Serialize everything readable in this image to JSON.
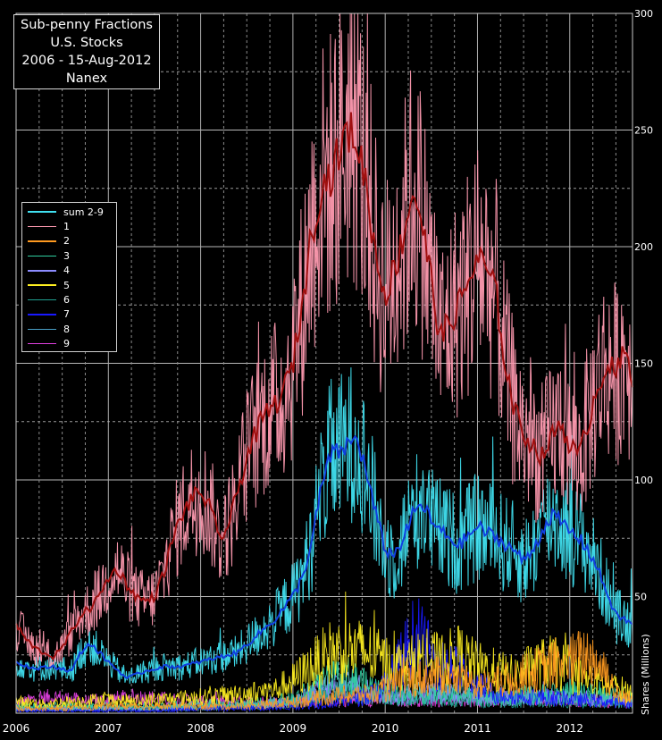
{
  "chart_data": {
    "type": "line",
    "title_lines": [
      "Sub-penny Fractions",
      "U.S. Stocks",
      "2006 - 15-Aug-2012",
      "Nanex"
    ],
    "ylabel": "Shares (Millions)",
    "xlabel": "",
    "xlim": [
      2006.0,
      2012.68
    ],
    "ylim": [
      0,
      300
    ],
    "x_ticks": [
      "2006",
      "2007",
      "2008",
      "2009",
      "2010",
      "2011",
      "2012"
    ],
    "y_ticks": [
      50,
      100,
      150,
      200,
      250,
      300
    ],
    "grid": true,
    "legend_position": "upper-left",
    "series": [
      {
        "name": "sum 2-9",
        "color": "#40e0f0",
        "x": [
          2006.0,
          2006.2,
          2006.4,
          2006.6,
          2006.7,
          2006.8,
          2007.0,
          2007.2,
          2007.4,
          2007.6,
          2007.8,
          2008.0,
          2008.2,
          2008.4,
          2008.6,
          2008.8,
          2009.0,
          2009.1,
          2009.2,
          2009.3,
          2009.4,
          2009.5,
          2009.6,
          2009.7,
          2009.8,
          2009.9,
          2010.0,
          2010.1,
          2010.2,
          2010.3,
          2010.4,
          2010.5,
          2010.6,
          2010.8,
          2011.0,
          2011.2,
          2011.4,
          2011.5,
          2011.6,
          2011.7,
          2011.8,
          2011.9,
          2012.0,
          2012.1,
          2012.2,
          2012.3,
          2012.4,
          2012.5,
          2012.6,
          2012.68
        ],
        "y": [
          22,
          19,
          20,
          18,
          26,
          30,
          22,
          15,
          18,
          20,
          20,
          22,
          24,
          26,
          33,
          40,
          50,
          58,
          72,
          95,
          110,
          112,
          115,
          118,
          102,
          85,
          70,
          68,
          75,
          85,
          90,
          82,
          78,
          72,
          80,
          75,
          70,
          65,
          70,
          78,
          85,
          82,
          78,
          75,
          70,
          62,
          52,
          42,
          40,
          38
        ]
      },
      {
        "name": "1",
        "color": "#ff9ab0",
        "x": [
          2006.0,
          2006.1,
          2006.2,
          2006.3,
          2006.4,
          2006.5,
          2006.6,
          2006.7,
          2006.8,
          2006.9,
          2007.0,
          2007.1,
          2007.2,
          2007.3,
          2007.4,
          2007.5,
          2007.6,
          2007.7,
          2007.8,
          2007.9,
          2008.0,
          2008.1,
          2008.2,
          2008.3,
          2008.4,
          2008.5,
          2008.6,
          2008.7,
          2008.8,
          2008.9,
          2009.0,
          2009.1,
          2009.2,
          2009.3,
          2009.4,
          2009.5,
          2009.6,
          2009.7,
          2009.8,
          2009.9,
          2010.0,
          2010.1,
          2010.2,
          2010.3,
          2010.4,
          2010.5,
          2010.6,
          2010.7,
          2010.8,
          2010.9,
          2011.0,
          2011.1,
          2011.2,
          2011.3,
          2011.4,
          2011.5,
          2011.6,
          2011.7,
          2011.8,
          2011.9,
          2012.0,
          2012.1,
          2012.2,
          2012.3,
          2012.4,
          2012.5,
          2012.6,
          2012.68
        ],
        "y": [
          38,
          32,
          28,
          26,
          24,
          28,
          35,
          42,
          45,
          50,
          58,
          62,
          55,
          50,
          48,
          50,
          60,
          75,
          85,
          92,
          95,
          88,
          75,
          80,
          95,
          110,
          120,
          128,
          132,
          138,
          150,
          175,
          205,
          225,
          230,
          240,
          250,
          245,
          225,
          195,
          180,
          190,
          205,
          225,
          210,
          185,
          160,
          168,
          175,
          185,
          195,
          190,
          180,
          150,
          130,
          120,
          115,
          110,
          118,
          125,
          115,
          110,
          125,
          140,
          150,
          145,
          155,
          145
        ]
      },
      {
        "name": "2",
        "color": "#ff9a20",
        "x": [
          2006.0,
          2006.5,
          2007.0,
          2007.5,
          2008.0,
          2008.5,
          2008.8,
          2009.0,
          2009.2,
          2009.4,
          2009.6,
          2009.8,
          2010.0,
          2010.2,
          2010.4,
          2010.6,
          2010.8,
          2011.0,
          2011.2,
          2011.4,
          2011.6,
          2011.8,
          2012.0,
          2012.2,
          2012.4,
          2012.5,
          2012.68
        ],
        "y": [
          2,
          2,
          3,
          3,
          3,
          3,
          4,
          5,
          6,
          7,
          8,
          8,
          10,
          14,
          15,
          16,
          14,
          12,
          13,
          15,
          18,
          20,
          22,
          25,
          18,
          8,
          6
        ]
      },
      {
        "name": "3",
        "color": "#30d0a0",
        "x": [
          2006.0,
          2006.5,
          2007.0,
          2007.5,
          2008.0,
          2008.5,
          2009.0,
          2009.2,
          2009.4,
          2009.6,
          2009.8,
          2010.0,
          2010.4,
          2010.8,
          2011.2,
          2011.6,
          2012.0,
          2012.4,
          2012.68
        ],
        "y": [
          3,
          3,
          3,
          3,
          4,
          4,
          6,
          10,
          14,
          16,
          12,
          9,
          8,
          8,
          7,
          8,
          9,
          8,
          6
        ]
      },
      {
        "name": "4",
        "color": "#8c8cff",
        "x": [
          2006.0,
          2006.5,
          2007.0,
          2007.5,
          2008.0,
          2008.5,
          2009.0,
          2009.2,
          2009.4,
          2009.6,
          2009.8,
          2010.0,
          2010.4,
          2010.8,
          2011.2,
          2011.6,
          2012.0,
          2012.4,
          2012.68
        ],
        "y": [
          2,
          2,
          2,
          2,
          3,
          3,
          5,
          8,
          12,
          13,
          10,
          8,
          9,
          8,
          6,
          7,
          7,
          6,
          5
        ]
      },
      {
        "name": "5",
        "color": "#ffef20",
        "x": [
          2006.0,
          2006.3,
          2006.6,
          2007.0,
          2007.3,
          2007.6,
          2008.0,
          2008.4,
          2008.8,
          2009.0,
          2009.2,
          2009.4,
          2009.6,
          2009.8,
          2010.0,
          2010.2,
          2010.4,
          2010.6,
          2010.8,
          2011.0,
          2011.2,
          2011.4,
          2011.6,
          2011.8,
          2012.0,
          2012.2,
          2012.4,
          2012.6,
          2012.68
        ],
        "y": [
          5,
          4,
          5,
          6,
          5,
          6,
          7,
          8,
          10,
          14,
          20,
          26,
          27,
          26,
          22,
          20,
          24,
          22,
          25,
          20,
          18,
          16,
          20,
          22,
          18,
          14,
          12,
          10,
          8
        ]
      },
      {
        "name": "6",
        "color": "#20a090",
        "x": [
          2006.0,
          2006.5,
          2007.0,
          2007.5,
          2008.0,
          2008.5,
          2009.0,
          2009.3,
          2009.6,
          2009.9,
          2010.2,
          2010.6,
          2011.0,
          2011.4,
          2011.8,
          2012.2,
          2012.68
        ],
        "y": [
          2,
          2,
          2,
          2,
          3,
          3,
          4,
          7,
          9,
          7,
          6,
          6,
          5,
          5,
          5,
          5,
          4
        ]
      },
      {
        "name": "7",
        "color": "#1818ff",
        "x": [
          2006.0,
          2006.5,
          2007.0,
          2007.5,
          2008.0,
          2008.5,
          2009.0,
          2009.5,
          2009.8,
          2010.0,
          2010.1,
          2010.2,
          2010.3,
          2010.4,
          2010.5,
          2010.6,
          2010.7,
          2010.8,
          2011.0,
          2011.2,
          2011.6,
          2012.0,
          2012.4,
          2012.68
        ],
        "y": [
          1,
          1,
          1,
          1,
          2,
          2,
          3,
          5,
          7,
          12,
          18,
          25,
          32,
          30,
          24,
          20,
          22,
          18,
          12,
          8,
          7,
          6,
          5,
          4
        ]
      },
      {
        "name": "8",
        "color": "#4aa0c8",
        "x": [
          2006.0,
          2006.5,
          2007.0,
          2007.5,
          2008.0,
          2008.5,
          2009.0,
          2009.5,
          2009.8,
          2010.2,
          2010.6,
          2011.0,
          2011.4,
          2011.8,
          2012.2,
          2012.68
        ],
        "y": [
          2,
          2,
          2,
          2,
          2,
          3,
          4,
          10,
          8,
          7,
          9,
          8,
          6,
          7,
          6,
          5
        ]
      },
      {
        "name": "9",
        "color": "#e040e0",
        "x": [
          2006.0,
          2006.2,
          2006.4,
          2006.6,
          2006.8,
          2007.0,
          2007.3,
          2007.6,
          2008.0,
          2008.5,
          2009.0,
          2009.5,
          2010.0,
          2010.5,
          2011.0,
          2011.5,
          2012.0,
          2012.4,
          2012.68
        ],
        "y": [
          4,
          6,
          7,
          6,
          5,
          6,
          7,
          6,
          5,
          5,
          5,
          6,
          6,
          6,
          5,
          7,
          6,
          5,
          4
        ]
      }
    ],
    "sum_mean_line_color": "#1040e0",
    "one_mean_line_color": "#a01010"
  }
}
